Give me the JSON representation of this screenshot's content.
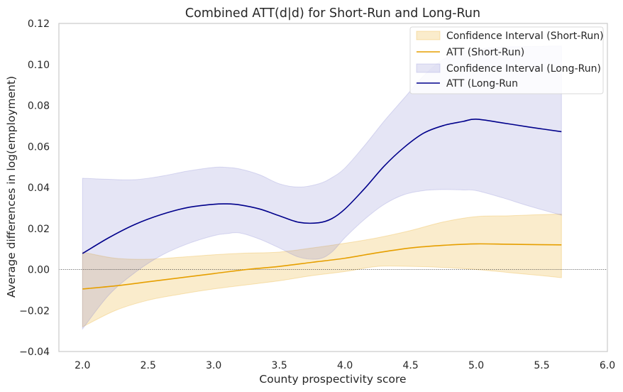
{
  "chart_data": {
    "type": "line",
    "title": "Combined ATT(d|d) for Short-Run and Long-Run",
    "xlabel": "County prospectivity score",
    "ylabel": "Average differences in log(employment)",
    "xlim": [
      1.82,
      6.0
    ],
    "ylim": [
      -0.04,
      0.12
    ],
    "xticks": [
      2.0,
      2.5,
      3.0,
      3.5,
      4.0,
      4.5,
      5.0,
      5.5,
      6.0
    ],
    "xtick_labels": [
      "2.0",
      "2.5",
      "3.0",
      "3.5",
      "4.0",
      "4.5",
      "5.0",
      "5.5",
      "6.0"
    ],
    "yticks": [
      -0.04,
      -0.02,
      0.0,
      0.02,
      0.04,
      0.06,
      0.08,
      0.1,
      0.12
    ],
    "ytick_labels": [
      "−0.04",
      "−0.02",
      "0.00",
      "0.02",
      "0.04",
      "0.06",
      "0.08",
      "0.10",
      "0.12"
    ],
    "grid": false,
    "reference_line_y": 0.0,
    "legend_position": "top-right",
    "series": [
      {
        "name": "ATT (Short-Run)",
        "kind": "line",
        "color": "#e69f00",
        "x": [
          2.0,
          2.25,
          2.5,
          2.75,
          3.0,
          3.25,
          3.5,
          3.75,
          4.0,
          4.25,
          4.5,
          4.75,
          5.0,
          5.25,
          5.5,
          5.65
        ],
        "y": [
          -0.0095,
          -0.008,
          -0.006,
          -0.004,
          -0.002,
          0.0,
          0.0015,
          0.0035,
          0.0055,
          0.0082,
          0.0105,
          0.0118,
          0.0125,
          0.0123,
          0.0121,
          0.012
        ]
      },
      {
        "name": "Confidence Interval (Short-Run)",
        "kind": "band",
        "color": "#e69f00",
        "x": [
          2.0,
          2.25,
          2.5,
          2.75,
          3.0,
          3.25,
          3.5,
          3.75,
          4.0,
          4.25,
          4.5,
          4.75,
          5.0,
          5.25,
          5.5,
          5.65
        ],
        "lower": [
          -0.028,
          -0.02,
          -0.015,
          -0.012,
          -0.0095,
          -0.0075,
          -0.0055,
          -0.003,
          -0.001,
          0.0015,
          0.0015,
          0.001,
          0.0,
          -0.0015,
          -0.003,
          -0.004
        ],
        "upper": [
          0.0085,
          0.0055,
          0.005,
          0.006,
          0.0072,
          0.008,
          0.0085,
          0.0105,
          0.0128,
          0.0155,
          0.019,
          0.0232,
          0.0258,
          0.0262,
          0.0268,
          0.027
        ]
      },
      {
        "name": "ATT (Long-Run",
        "kind": "line",
        "color": "#00008b",
        "x": [
          2.0,
          2.2,
          2.4,
          2.6,
          2.8,
          3.0,
          3.1,
          3.2,
          3.35,
          3.5,
          3.65,
          3.8,
          3.9,
          4.0,
          4.15,
          4.3,
          4.45,
          4.6,
          4.75,
          4.9,
          5.0,
          5.2,
          5.4,
          5.65
        ],
        "y": [
          0.0078,
          0.0155,
          0.022,
          0.0268,
          0.0302,
          0.0318,
          0.032,
          0.0315,
          0.0295,
          0.0262,
          0.023,
          0.0228,
          0.0248,
          0.0295,
          0.0395,
          0.0505,
          0.0595,
          0.0665,
          0.0702,
          0.0722,
          0.0733,
          0.0715,
          0.0695,
          0.0672
        ]
      },
      {
        "name": "Confidence Interval (Long-Run)",
        "kind": "band",
        "color": "#7b7bcf",
        "x": [
          2.0,
          2.2,
          2.4,
          2.6,
          2.8,
          3.0,
          3.1,
          3.2,
          3.35,
          3.5,
          3.65,
          3.8,
          3.9,
          4.0,
          4.15,
          4.3,
          4.45,
          4.6,
          4.75,
          4.9,
          5.0,
          5.2,
          5.4,
          5.65
        ],
        "lower": [
          -0.029,
          -0.0125,
          -0.0015,
          0.0068,
          0.0125,
          0.0165,
          0.0175,
          0.0178,
          0.0148,
          0.0105,
          0.006,
          0.0052,
          0.0085,
          0.0155,
          0.0245,
          0.0318,
          0.0365,
          0.0385,
          0.039,
          0.0388,
          0.0385,
          0.035,
          0.031,
          0.0265
        ],
        "upper": [
          0.0445,
          0.044,
          0.0438,
          0.0455,
          0.048,
          0.0498,
          0.0498,
          0.049,
          0.0462,
          0.0418,
          0.0402,
          0.0418,
          0.0448,
          0.0495,
          0.0605,
          0.0725,
          0.0835,
          0.0945,
          0.1025,
          0.1065,
          0.1075,
          0.1085,
          0.1088,
          0.109
        ]
      }
    ]
  }
}
